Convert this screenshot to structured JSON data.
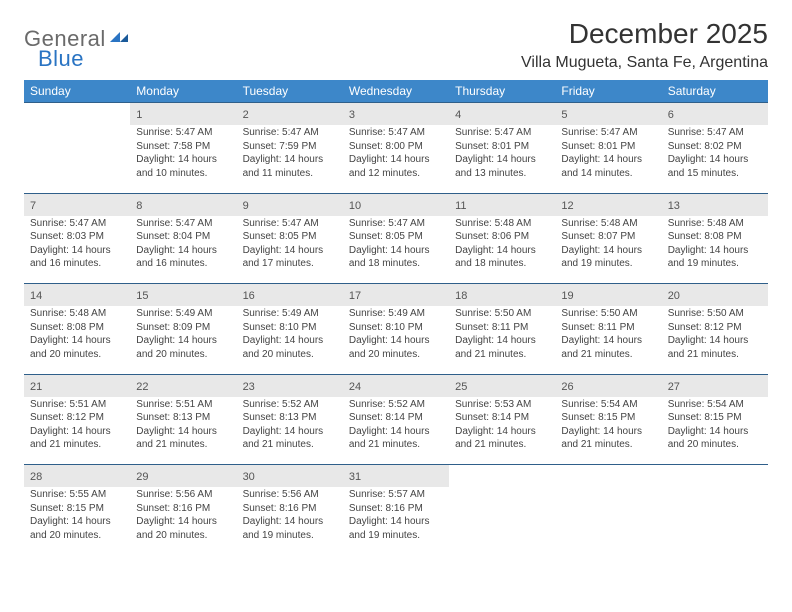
{
  "logo": {
    "part1": "General",
    "part2": "Blue"
  },
  "header": {
    "title": "December 2025",
    "location": "Villa Mugueta, Santa Fe, Argentina"
  },
  "colors": {
    "header_bg": "#3d87c9",
    "header_text": "#ffffff",
    "daynum_bg": "#e8e8e8",
    "row_divider": "#2f5f8a",
    "cell_text": "#444444",
    "logo_gray": "#6a6a6a",
    "logo_blue": "#2a74c3"
  },
  "typography": {
    "title_fontsize": 28,
    "location_fontsize": 16,
    "header_fontsize": 12,
    "daynum_fontsize": 11,
    "cell_fontsize": 10
  },
  "daysOfWeek": [
    "Sunday",
    "Monday",
    "Tuesday",
    "Wednesday",
    "Thursday",
    "Friday",
    "Saturday"
  ],
  "weeks": [
    [
      {
        "num": "",
        "lines": []
      },
      {
        "num": "1",
        "lines": [
          "Sunrise: 5:47 AM",
          "Sunset: 7:58 PM",
          "Daylight: 14 hours",
          "and 10 minutes."
        ]
      },
      {
        "num": "2",
        "lines": [
          "Sunrise: 5:47 AM",
          "Sunset: 7:59 PM",
          "Daylight: 14 hours",
          "and 11 minutes."
        ]
      },
      {
        "num": "3",
        "lines": [
          "Sunrise: 5:47 AM",
          "Sunset: 8:00 PM",
          "Daylight: 14 hours",
          "and 12 minutes."
        ]
      },
      {
        "num": "4",
        "lines": [
          "Sunrise: 5:47 AM",
          "Sunset: 8:01 PM",
          "Daylight: 14 hours",
          "and 13 minutes."
        ]
      },
      {
        "num": "5",
        "lines": [
          "Sunrise: 5:47 AM",
          "Sunset: 8:01 PM",
          "Daylight: 14 hours",
          "and 14 minutes."
        ]
      },
      {
        "num": "6",
        "lines": [
          "Sunrise: 5:47 AM",
          "Sunset: 8:02 PM",
          "Daylight: 14 hours",
          "and 15 minutes."
        ]
      }
    ],
    [
      {
        "num": "7",
        "lines": [
          "Sunrise: 5:47 AM",
          "Sunset: 8:03 PM",
          "Daylight: 14 hours",
          "and 16 minutes."
        ]
      },
      {
        "num": "8",
        "lines": [
          "Sunrise: 5:47 AM",
          "Sunset: 8:04 PM",
          "Daylight: 14 hours",
          "and 16 minutes."
        ]
      },
      {
        "num": "9",
        "lines": [
          "Sunrise: 5:47 AM",
          "Sunset: 8:05 PM",
          "Daylight: 14 hours",
          "and 17 minutes."
        ]
      },
      {
        "num": "10",
        "lines": [
          "Sunrise: 5:47 AM",
          "Sunset: 8:05 PM",
          "Daylight: 14 hours",
          "and 18 minutes."
        ]
      },
      {
        "num": "11",
        "lines": [
          "Sunrise: 5:48 AM",
          "Sunset: 8:06 PM",
          "Daylight: 14 hours",
          "and 18 minutes."
        ]
      },
      {
        "num": "12",
        "lines": [
          "Sunrise: 5:48 AM",
          "Sunset: 8:07 PM",
          "Daylight: 14 hours",
          "and 19 minutes."
        ]
      },
      {
        "num": "13",
        "lines": [
          "Sunrise: 5:48 AM",
          "Sunset: 8:08 PM",
          "Daylight: 14 hours",
          "and 19 minutes."
        ]
      }
    ],
    [
      {
        "num": "14",
        "lines": [
          "Sunrise: 5:48 AM",
          "Sunset: 8:08 PM",
          "Daylight: 14 hours",
          "and 20 minutes."
        ]
      },
      {
        "num": "15",
        "lines": [
          "Sunrise: 5:49 AM",
          "Sunset: 8:09 PM",
          "Daylight: 14 hours",
          "and 20 minutes."
        ]
      },
      {
        "num": "16",
        "lines": [
          "Sunrise: 5:49 AM",
          "Sunset: 8:10 PM",
          "Daylight: 14 hours",
          "and 20 minutes."
        ]
      },
      {
        "num": "17",
        "lines": [
          "Sunrise: 5:49 AM",
          "Sunset: 8:10 PM",
          "Daylight: 14 hours",
          "and 20 minutes."
        ]
      },
      {
        "num": "18",
        "lines": [
          "Sunrise: 5:50 AM",
          "Sunset: 8:11 PM",
          "Daylight: 14 hours",
          "and 21 minutes."
        ]
      },
      {
        "num": "19",
        "lines": [
          "Sunrise: 5:50 AM",
          "Sunset: 8:11 PM",
          "Daylight: 14 hours",
          "and 21 minutes."
        ]
      },
      {
        "num": "20",
        "lines": [
          "Sunrise: 5:50 AM",
          "Sunset: 8:12 PM",
          "Daylight: 14 hours",
          "and 21 minutes."
        ]
      }
    ],
    [
      {
        "num": "21",
        "lines": [
          "Sunrise: 5:51 AM",
          "Sunset: 8:12 PM",
          "Daylight: 14 hours",
          "and 21 minutes."
        ]
      },
      {
        "num": "22",
        "lines": [
          "Sunrise: 5:51 AM",
          "Sunset: 8:13 PM",
          "Daylight: 14 hours",
          "and 21 minutes."
        ]
      },
      {
        "num": "23",
        "lines": [
          "Sunrise: 5:52 AM",
          "Sunset: 8:13 PM",
          "Daylight: 14 hours",
          "and 21 minutes."
        ]
      },
      {
        "num": "24",
        "lines": [
          "Sunrise: 5:52 AM",
          "Sunset: 8:14 PM",
          "Daylight: 14 hours",
          "and 21 minutes."
        ]
      },
      {
        "num": "25",
        "lines": [
          "Sunrise: 5:53 AM",
          "Sunset: 8:14 PM",
          "Daylight: 14 hours",
          "and 21 minutes."
        ]
      },
      {
        "num": "26",
        "lines": [
          "Sunrise: 5:54 AM",
          "Sunset: 8:15 PM",
          "Daylight: 14 hours",
          "and 21 minutes."
        ]
      },
      {
        "num": "27",
        "lines": [
          "Sunrise: 5:54 AM",
          "Sunset: 8:15 PM",
          "Daylight: 14 hours",
          "and 20 minutes."
        ]
      }
    ],
    [
      {
        "num": "28",
        "lines": [
          "Sunrise: 5:55 AM",
          "Sunset: 8:15 PM",
          "Daylight: 14 hours",
          "and 20 minutes."
        ]
      },
      {
        "num": "29",
        "lines": [
          "Sunrise: 5:56 AM",
          "Sunset: 8:16 PM",
          "Daylight: 14 hours",
          "and 20 minutes."
        ]
      },
      {
        "num": "30",
        "lines": [
          "Sunrise: 5:56 AM",
          "Sunset: 8:16 PM",
          "Daylight: 14 hours",
          "and 19 minutes."
        ]
      },
      {
        "num": "31",
        "lines": [
          "Sunrise: 5:57 AM",
          "Sunset: 8:16 PM",
          "Daylight: 14 hours",
          "and 19 minutes."
        ]
      },
      {
        "num": "",
        "lines": []
      },
      {
        "num": "",
        "lines": []
      },
      {
        "num": "",
        "lines": []
      }
    ]
  ]
}
